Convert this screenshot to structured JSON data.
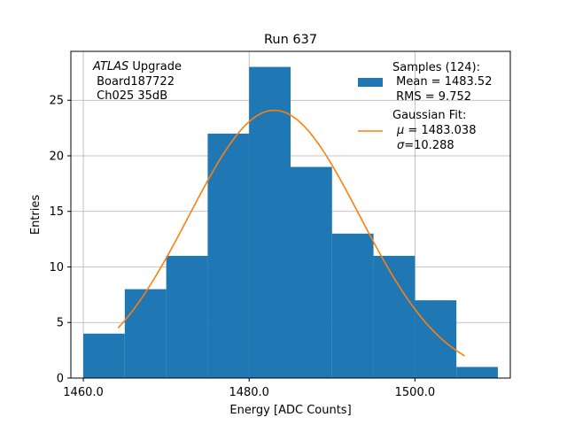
{
  "chart_data": {
    "type": "bar",
    "title": "Run 637",
    "xlabel": "Energy [ADC Counts]",
    "ylabel": "Entries",
    "xlim": [
      1458.5,
      1511.5
    ],
    "ylim": [
      0,
      29.4
    ],
    "grid": true,
    "bins": [
      {
        "x0": 1460,
        "x1": 1465,
        "count": 4
      },
      {
        "x0": 1465,
        "x1": 1470,
        "count": 8
      },
      {
        "x0": 1470,
        "x1": 1475,
        "count": 11
      },
      {
        "x0": 1475,
        "x1": 1480,
        "count": 22
      },
      {
        "x0": 1480,
        "x1": 1485,
        "count": 28
      },
      {
        "x0": 1485,
        "x1": 1490,
        "count": 19
      },
      {
        "x0": 1490,
        "x1": 1495,
        "count": 13
      },
      {
        "x0": 1495,
        "x1": 1500,
        "count": 11
      },
      {
        "x0": 1500,
        "x1": 1505,
        "count": 7
      },
      {
        "x0": 1505,
        "x1": 1510,
        "count": 1
      }
    ],
    "fit": {
      "mu": 1483.038,
      "sigma": 10.288,
      "amplitude": 24.1,
      "x_range": [
        1464.2,
        1506.0
      ]
    },
    "xticks": [
      {
        "value": 1460,
        "label": "1460.0"
      },
      {
        "value": 1480,
        "label": "1480.0"
      },
      {
        "value": 1500,
        "label": "1500.0"
      }
    ],
    "yticks": [
      {
        "value": 0,
        "label": "0"
      },
      {
        "value": 5,
        "label": "5"
      },
      {
        "value": 10,
        "label": "10"
      },
      {
        "value": 15,
        "label": "15"
      },
      {
        "value": 20,
        "label": "20"
      },
      {
        "value": 25,
        "label": "25"
      }
    ],
    "annotation": {
      "atlas": "ATLAS",
      "upgrade": " Upgrade",
      "board": " Board187722",
      "channel": " Ch025 35dB"
    },
    "legend": {
      "placement": "top-right",
      "samples": {
        "line1": "Samples (124):",
        "line2": " Mean = 1483.52",
        "line3": " RMS = 9.752"
      },
      "fit": {
        "line1": "Gaussian Fit:",
        "mu_symbol": "μ",
        "mu_text": " = 1483.038",
        "sigma_symbol": "σ",
        "sigma_text": "=10.288"
      }
    },
    "colors": {
      "bars": "#1f77b4",
      "fit": "#ff7f0e",
      "grid": "#b0b0b0",
      "axes": "#000000"
    }
  }
}
